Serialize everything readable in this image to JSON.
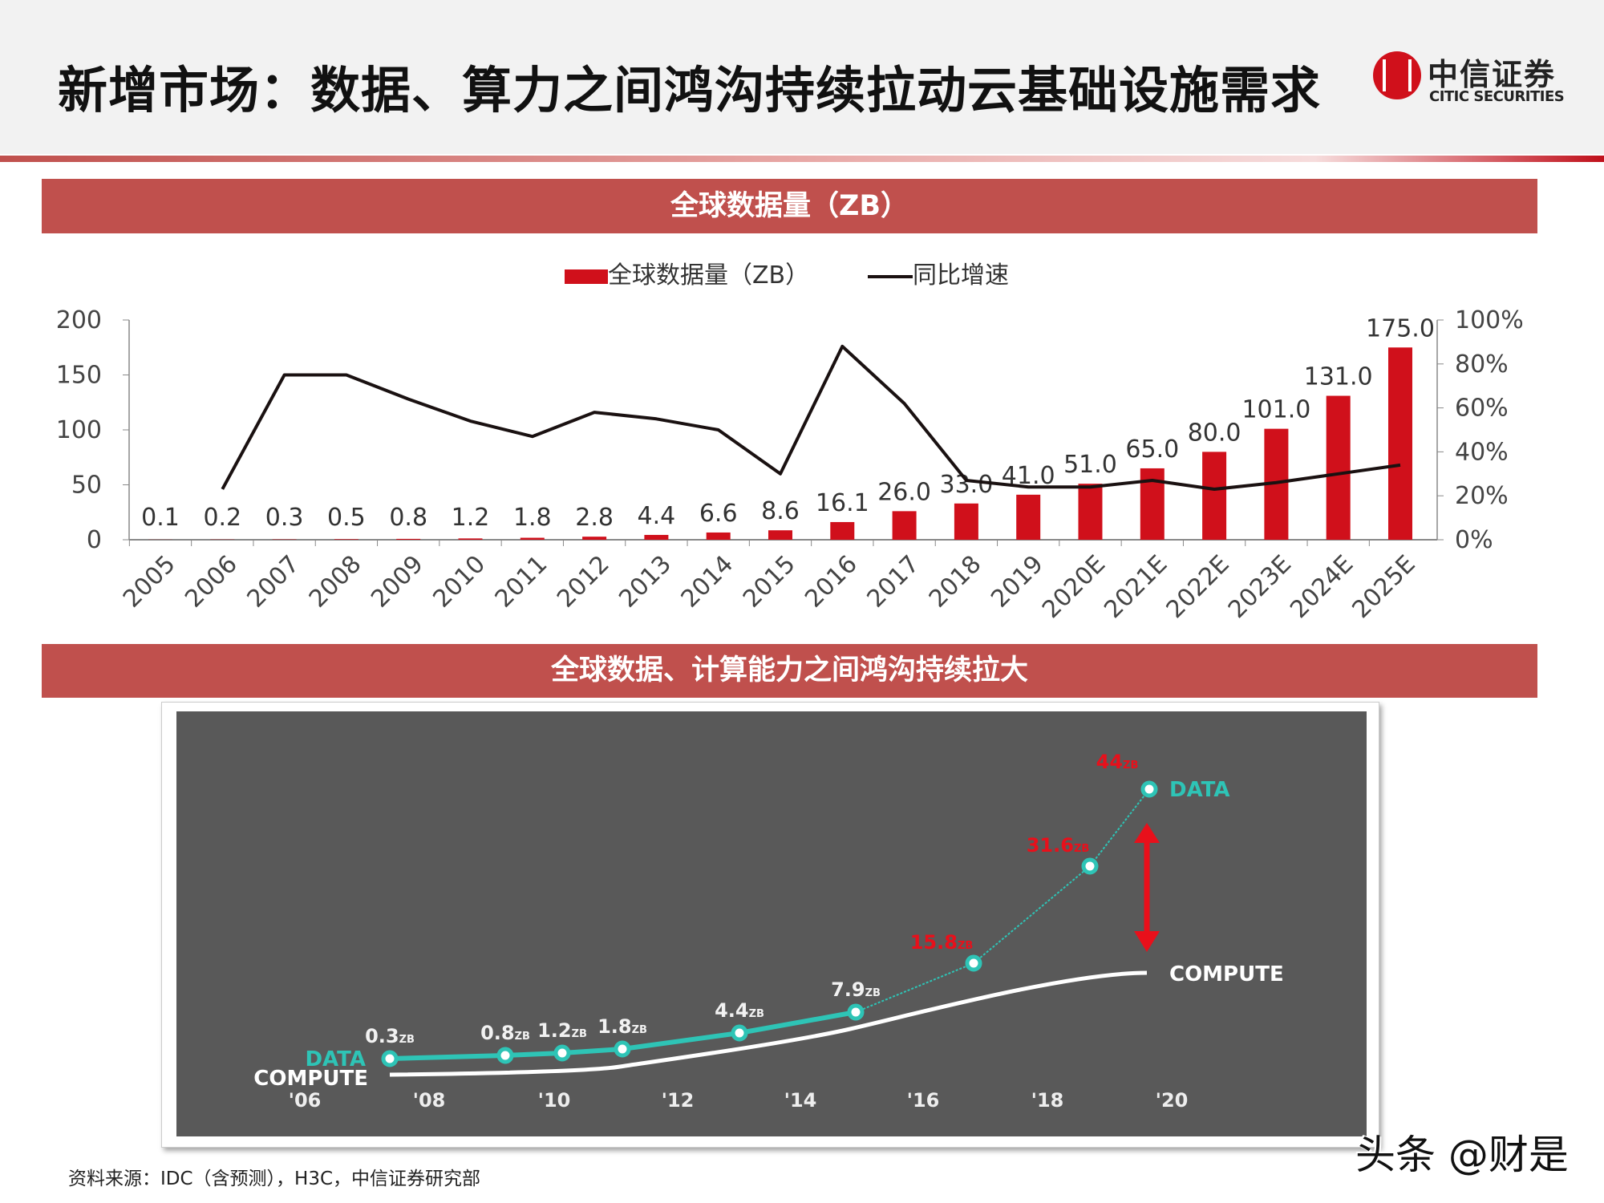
{
  "header": {
    "title": "新增市场：数据、算力之间鸿沟持续拉动云基础设施需求",
    "logo_cn": "中信证券",
    "logo_en": "CITIC SECURITIES"
  },
  "colors": {
    "banner": "#c0504d",
    "bar": "#d0101b",
    "line": "#1a1111",
    "panel_bg": "#595959",
    "data_line": "#2ec4b6",
    "highlight_label": "#e8101b"
  },
  "section1": {
    "title": "全球数据量（ZB）"
  },
  "section2": {
    "title": "全球数据、计算能力之间鸿沟持续拉大"
  },
  "chart_data": [
    {
      "type": "bar+line",
      "legend": [
        "全球数据量（ZB）",
        "同比增速"
      ],
      "legend_position": "top",
      "categories": [
        "2005",
        "2006",
        "2007",
        "2008",
        "2009",
        "2010",
        "2011",
        "2012",
        "2013",
        "2014",
        "2015",
        "2016",
        "2017",
        "2018",
        "2019",
        "2020E",
        "2021E",
        "2022E",
        "2023E",
        "2024E",
        "2025E"
      ],
      "series": [
        {
          "name": "全球数据量（ZB）",
          "type": "bar",
          "axis": "left",
          "values": [
            0.1,
            0.2,
            0.3,
            0.5,
            0.8,
            1.2,
            1.8,
            2.8,
            4.4,
            6.6,
            8.6,
            16.1,
            26.0,
            33.0,
            41.0,
            51.0,
            65.0,
            80.0,
            101.0,
            131.0,
            175.0
          ],
          "labels": [
            "0.1",
            "0.2",
            "0.3",
            "0.5",
            "0.8",
            "1.2",
            "1.8",
            "2.8",
            "4.4",
            "6.6",
            "8.6",
            "16.1",
            "26.0",
            "33.0",
            "41.0",
            "51.0",
            "65.0",
            "80.0",
            "101.0",
            "131.0",
            "175.0"
          ]
        },
        {
          "name": "同比增速",
          "type": "line",
          "axis": "right",
          "values": [
            null,
            23,
            75,
            75,
            64,
            54,
            47,
            58,
            55,
            50,
            30,
            88,
            62,
            27,
            24,
            24,
            27,
            23,
            26,
            30,
            34
          ]
        }
      ],
      "y_left": {
        "range": [
          0,
          200
        ],
        "ticks": [
          "0",
          "50",
          "100",
          "150",
          "200"
        ]
      },
      "y_right": {
        "range": [
          0,
          100
        ],
        "ticks": [
          "0%",
          "20%",
          "40%",
          "60%",
          "80%",
          "100%"
        ]
      },
      "grid": false
    },
    {
      "type": "line",
      "x_ticks": [
        "'06",
        "'08",
        "'10",
        "'12",
        "'14",
        "'16",
        "'18",
        "'20"
      ],
      "series": [
        {
          "name": "DATA",
          "x": [
            2007.3,
            2009.2,
            2010.1,
            2011.1,
            2013,
            2014.9,
            2016.8,
            2018.7,
            2019.7
          ],
          "labels": [
            "0.3",
            "0.8",
            "1.2",
            "1.8",
            "4.4",
            "7.9",
            "15.8",
            "31.6",
            "44"
          ],
          "unit": "ZB",
          "highlighted": [
            false,
            false,
            false,
            false,
            false,
            false,
            true,
            true,
            true
          ]
        },
        {
          "name": "COMPUTE"
        }
      ]
    }
  ],
  "footer": {
    "source": "资料来源：IDC（含预测），H3C，中信证券研究部",
    "watermark": "头条 @财是"
  }
}
